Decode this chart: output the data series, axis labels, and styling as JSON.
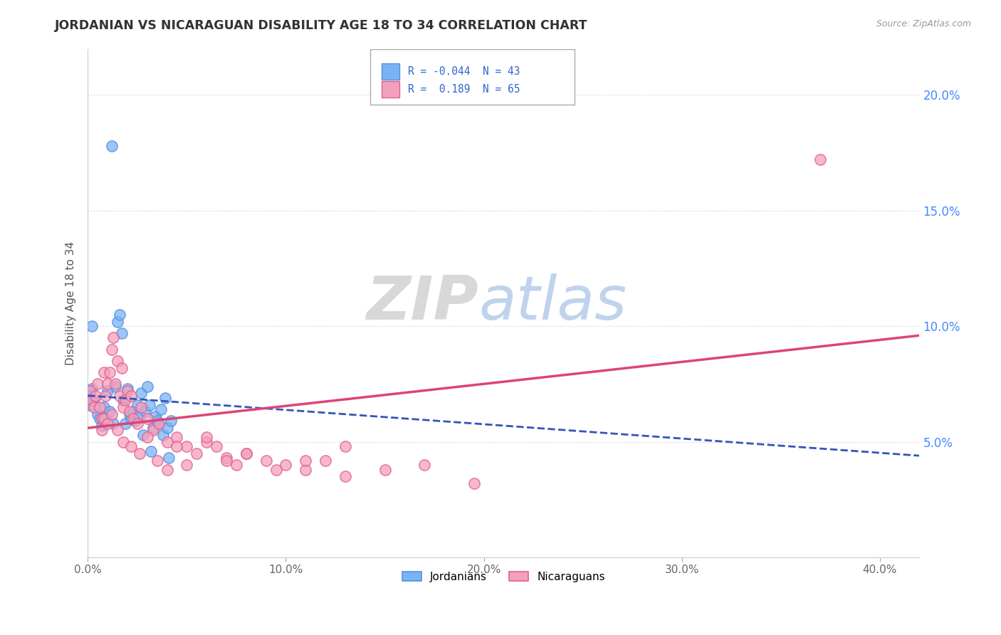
{
  "title": "JORDANIAN VS NICARAGUAN DISABILITY AGE 18 TO 34 CORRELATION CHART",
  "source": "Source: ZipAtlas.com",
  "ylabel": "Disability Age 18 to 34",
  "ytick_labels": [
    "5.0%",
    "10.0%",
    "15.0%",
    "20.0%"
  ],
  "ytick_values": [
    0.05,
    0.1,
    0.15,
    0.2
  ],
  "xtick_vals": [
    0.0,
    0.1,
    0.2,
    0.3,
    0.4
  ],
  "xtick_labels": [
    "0.0%",
    "10.0%",
    "20.0%",
    "30.0%",
    "40.0%"
  ],
  "xlim": [
    0.0,
    0.42
  ],
  "ylim": [
    0.0,
    0.22
  ],
  "legend_label_jordanians": "Jordanians",
  "legend_label_nicaraguans": "Nicaraguans",
  "watermark_zip": "ZIP",
  "watermark_atlas": "atlas",
  "jordanian_color": "#7ab3f5",
  "jordanian_edge": "#5590e0",
  "nicaraguan_color": "#f5a0bb",
  "nicaraguan_edge": "#e06090",
  "trend_jordanian_color": "#3355bb",
  "trend_nicaraguan_color": "#dd4477",
  "jordanian_x": [
    0.002,
    0.003,
    0.005,
    0.006,
    0.007,
    0.008,
    0.009,
    0.01,
    0.011,
    0.012,
    0.013,
    0.014,
    0.015,
    0.016,
    0.017,
    0.018,
    0.019,
    0.02,
    0.021,
    0.022,
    0.023,
    0.024,
    0.025,
    0.026,
    0.027,
    0.028,
    0.029,
    0.03,
    0.031,
    0.032,
    0.033,
    0.034,
    0.035,
    0.036,
    0.037,
    0.038,
    0.039,
    0.04,
    0.041,
    0.042,
    0.001,
    0.001,
    0.002
  ],
  "jordanian_y": [
    0.073,
    0.068,
    0.062,
    0.06,
    0.057,
    0.065,
    0.06,
    0.072,
    0.063,
    0.178,
    0.058,
    0.074,
    0.102,
    0.105,
    0.097,
    0.068,
    0.058,
    0.073,
    0.062,
    0.06,
    0.063,
    0.059,
    0.066,
    0.061,
    0.071,
    0.053,
    0.063,
    0.074,
    0.066,
    0.046,
    0.056,
    0.061,
    0.059,
    0.058,
    0.064,
    0.053,
    0.069,
    0.056,
    0.043,
    0.059,
    0.07,
    0.066,
    0.1
  ],
  "nicaraguan_x": [
    0.001,
    0.002,
    0.003,
    0.004,
    0.005,
    0.006,
    0.007,
    0.008,
    0.009,
    0.01,
    0.011,
    0.012,
    0.013,
    0.014,
    0.015,
    0.016,
    0.017,
    0.018,
    0.019,
    0.02,
    0.021,
    0.022,
    0.023,
    0.025,
    0.027,
    0.03,
    0.033,
    0.036,
    0.04,
    0.045,
    0.05,
    0.055,
    0.06,
    0.065,
    0.07,
    0.075,
    0.08,
    0.09,
    0.1,
    0.11,
    0.12,
    0.13,
    0.007,
    0.008,
    0.01,
    0.012,
    0.015,
    0.018,
    0.022,
    0.026,
    0.03,
    0.035,
    0.04,
    0.045,
    0.05,
    0.06,
    0.07,
    0.08,
    0.095,
    0.11,
    0.13,
    0.15,
    0.17,
    0.195,
    0.37
  ],
  "nicaraguan_y": [
    0.072,
    0.068,
    0.065,
    0.07,
    0.075,
    0.065,
    0.06,
    0.08,
    0.07,
    0.075,
    0.08,
    0.09,
    0.095,
    0.075,
    0.085,
    0.07,
    0.082,
    0.065,
    0.068,
    0.072,
    0.063,
    0.07,
    0.06,
    0.058,
    0.065,
    0.06,
    0.055,
    0.058,
    0.05,
    0.052,
    0.048,
    0.045,
    0.05,
    0.048,
    0.043,
    0.04,
    0.045,
    0.042,
    0.04,
    0.038,
    0.042,
    0.035,
    0.055,
    0.06,
    0.058,
    0.062,
    0.055,
    0.05,
    0.048,
    0.045,
    0.052,
    0.042,
    0.038,
    0.048,
    0.04,
    0.052,
    0.042,
    0.045,
    0.038,
    0.042,
    0.048,
    0.038,
    0.04,
    0.032,
    0.172
  ]
}
